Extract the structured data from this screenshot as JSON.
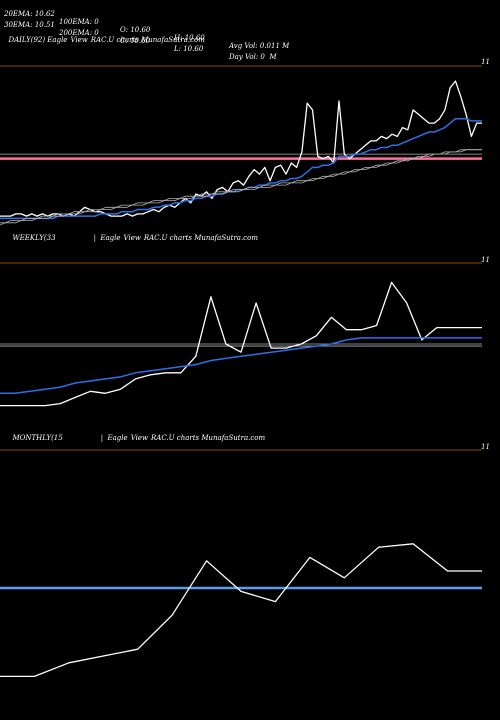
{
  "header": {
    "row1": [
      "20EMA: 10.62",
      "100EMA: 0",
      "O: 10.60",
      "H: 10.60",
      "Avg Vol: 0.011 M"
    ],
    "row2": [
      "30EMA: 10.51",
      "200EMA: 0",
      "C: 10.60",
      "L: 10.60",
      "Day Vol: 0  M"
    ]
  },
  "panels": [
    {
      "label_parts": [
        "DAILY(92) Eagle",
        "View",
        "RAC.U charts MunafaSutra.com"
      ],
      "tick_label": "11"
    },
    {
      "label_parts": [
        "WEEKLY(33",
        "|  Eagle",
        "View",
        "RAC.U charts MunafaSutra.com"
      ],
      "tick_label": "11"
    },
    {
      "label_parts": [
        "MONTHLY(15",
        "|  Eagle",
        "View",
        "RAC.U charts MunafaSutra.com"
      ],
      "tick_label": "11"
    }
  ],
  "colors": {
    "price": "#ffffff",
    "ema": "#2f6fe6",
    "slow": "#b0b0b0",
    "resistance": "#ff6fa0",
    "support": "#5b9bf0",
    "divider": "#8a4a00"
  },
  "chart_data": [
    {
      "type": "line",
      "name": "daily",
      "ylim": [
        10.3,
        11.0
      ],
      "x": [
        0,
        1,
        2,
        3,
        4,
        5,
        6,
        7,
        8,
        9,
        10,
        11,
        12,
        13,
        14,
        15,
        16,
        17,
        18,
        19,
        20,
        21,
        22,
        23,
        24,
        25,
        26,
        27,
        28,
        29,
        30,
        31,
        32,
        33,
        34,
        35,
        36,
        37,
        38,
        39,
        40,
        41,
        42,
        43,
        44,
        45,
        46,
        47,
        48,
        49,
        50,
        51,
        52,
        53,
        54,
        55,
        56,
        57,
        58,
        59,
        60,
        61,
        62,
        63,
        64,
        65,
        66,
        67,
        68,
        69,
        70,
        71,
        72,
        73,
        74,
        75,
        76,
        77,
        78,
        79,
        80,
        81,
        82,
        83,
        84,
        85,
        86,
        87,
        88,
        89,
        90,
        91
      ],
      "series": [
        {
          "role": "price",
          "values": [
            10.34,
            10.34,
            10.34,
            10.35,
            10.35,
            10.34,
            10.35,
            10.34,
            10.35,
            10.34,
            10.35,
            10.35,
            10.34,
            10.35,
            10.34,
            10.36,
            10.38,
            10.37,
            10.36,
            10.36,
            10.35,
            10.34,
            10.34,
            10.34,
            10.35,
            10.34,
            10.35,
            10.35,
            10.36,
            10.37,
            10.36,
            10.38,
            10.39,
            10.38,
            10.4,
            10.42,
            10.4,
            10.44,
            10.43,
            10.45,
            10.42,
            10.46,
            10.47,
            10.45,
            10.49,
            10.5,
            10.48,
            10.52,
            10.55,
            10.53,
            10.56,
            10.5,
            10.56,
            10.57,
            10.53,
            10.58,
            10.56,
            10.63,
            10.85,
            10.82,
            10.61,
            10.6,
            10.61,
            10.58,
            10.86,
            10.62,
            10.6,
            10.62,
            10.64,
            10.66,
            10.68,
            10.68,
            10.7,
            10.69,
            10.71,
            10.7,
            10.74,
            10.73,
            10.82,
            10.8,
            10.78,
            10.76,
            10.76,
            10.78,
            10.82,
            10.92,
            10.95,
            10.88,
            10.8,
            10.7,
            10.76,
            10.76
          ]
        },
        {
          "role": "ema",
          "values": [
            10.33,
            10.33,
            10.33,
            10.33,
            10.33,
            10.33,
            10.33,
            10.33,
            10.33,
            10.33,
            10.33,
            10.34,
            10.34,
            10.34,
            10.34,
            10.34,
            10.34,
            10.34,
            10.34,
            10.35,
            10.35,
            10.35,
            10.35,
            10.36,
            10.36,
            10.36,
            10.37,
            10.37,
            10.37,
            10.38,
            10.38,
            10.39,
            10.39,
            10.4,
            10.4,
            10.41,
            10.41,
            10.42,
            10.42,
            10.43,
            10.43,
            10.44,
            10.44,
            10.45,
            10.45,
            10.46,
            10.46,
            10.47,
            10.47,
            10.48,
            10.48,
            10.49,
            10.49,
            10.5,
            10.5,
            10.51,
            10.51,
            10.52,
            10.54,
            10.56,
            10.56,
            10.57,
            10.57,
            10.58,
            10.61,
            10.61,
            10.61,
            10.62,
            10.62,
            10.63,
            10.64,
            10.64,
            10.65,
            10.65,
            10.66,
            10.66,
            10.67,
            10.68,
            10.69,
            10.7,
            10.71,
            10.72,
            10.72,
            10.73,
            10.74,
            10.76,
            10.78,
            10.78,
            10.78,
            10.77,
            10.77,
            10.77
          ]
        },
        {
          "role": "slow",
          "values": [
            10.3,
            10.31,
            10.31,
            10.31,
            10.32,
            10.32,
            10.32,
            10.33,
            10.33,
            10.33,
            10.34,
            10.34,
            10.34,
            10.35,
            10.35,
            10.35,
            10.36,
            10.36,
            10.36,
            10.37,
            10.37,
            10.37,
            10.38,
            10.38,
            10.38,
            10.39,
            10.39,
            10.39,
            10.4,
            10.4,
            10.4,
            10.41,
            10.41,
            10.41,
            10.42,
            10.42,
            10.42,
            10.43,
            10.43,
            10.43,
            10.44,
            10.44,
            10.44,
            10.45,
            10.45,
            10.45,
            10.46,
            10.46,
            10.46,
            10.47,
            10.47,
            10.47,
            10.48,
            10.48,
            10.48,
            10.49,
            10.49,
            10.49,
            10.5,
            10.5,
            10.51,
            10.51,
            10.52,
            10.52,
            10.53,
            10.53,
            10.54,
            10.54,
            10.55,
            10.55,
            10.56,
            10.56,
            10.57,
            10.57,
            10.58,
            10.58,
            10.59,
            10.59,
            10.6,
            10.6,
            10.61,
            10.61,
            10.62,
            10.62,
            10.62,
            10.63,
            10.63,
            10.63,
            10.64,
            10.64,
            10.64,
            10.64
          ]
        },
        {
          "role": "slow2",
          "values": [
            10.31,
            10.31,
            10.32,
            10.32,
            10.32,
            10.33,
            10.33,
            10.33,
            10.34,
            10.34,
            10.34,
            10.35,
            10.35,
            10.35,
            10.36,
            10.36,
            10.36,
            10.37,
            10.37,
            10.37,
            10.38,
            10.38,
            10.38,
            10.39,
            10.39,
            10.39,
            10.4,
            10.4,
            10.4,
            10.41,
            10.41,
            10.41,
            10.42,
            10.42,
            10.42,
            10.43,
            10.43,
            10.43,
            10.44,
            10.44,
            10.44,
            10.45,
            10.45,
            10.45,
            10.46,
            10.46,
            10.46,
            10.47,
            10.47,
            10.47,
            10.48,
            10.48,
            10.48,
            10.49,
            10.49,
            10.49,
            10.5,
            10.5,
            10.5,
            10.51,
            10.51,
            10.52,
            10.52,
            10.53,
            10.53,
            10.54,
            10.54,
            10.55,
            10.55,
            10.56,
            10.56,
            10.57,
            10.57,
            10.58,
            10.58,
            10.59,
            10.59,
            10.6,
            10.6,
            10.61,
            10.61,
            10.62,
            10.62,
            10.62,
            10.63,
            10.63,
            10.63,
            10.64,
            10.64,
            10.64,
            10.64,
            10.64
          ]
        }
      ],
      "hlines": [
        {
          "role": "resistance",
          "y": 10.6
        },
        {
          "role": "slow",
          "y": 10.62
        }
      ]
    },
    {
      "type": "line",
      "name": "weekly",
      "ylim": [
        10.25,
        11.0
      ],
      "x": [
        0,
        1,
        2,
        3,
        4,
        5,
        6,
        7,
        8,
        9,
        10,
        11,
        12,
        13,
        14,
        15,
        16,
        17,
        18,
        19,
        20,
        21,
        22,
        23,
        24,
        25,
        26,
        27,
        28,
        29,
        30,
        31,
        32
      ],
      "series": [
        {
          "role": "price",
          "values": [
            10.32,
            10.32,
            10.32,
            10.32,
            10.33,
            10.36,
            10.39,
            10.38,
            10.4,
            10.45,
            10.47,
            10.48,
            10.48,
            10.56,
            10.85,
            10.62,
            10.58,
            10.82,
            10.6,
            10.6,
            10.62,
            10.66,
            10.75,
            10.69,
            10.69,
            10.71,
            10.92,
            10.82,
            10.64,
            10.7,
            10.7,
            10.7,
            10.7
          ]
        },
        {
          "role": "ema",
          "values": [
            10.38,
            10.38,
            10.39,
            10.4,
            10.41,
            10.43,
            10.44,
            10.45,
            10.46,
            10.48,
            10.49,
            10.5,
            10.51,
            10.52,
            10.54,
            10.55,
            10.56,
            10.57,
            10.58,
            10.59,
            10.6,
            10.61,
            10.62,
            10.64,
            10.65,
            10.65,
            10.65,
            10.65,
            10.65,
            10.65,
            10.65,
            10.65,
            10.65
          ]
        }
      ],
      "hlines": [
        {
          "role": "slow",
          "y": 10.61
        },
        {
          "role": "slow",
          "y": 10.62
        }
      ]
    },
    {
      "type": "line",
      "name": "monthly",
      "ylim": [
        10.3,
        11.0
      ],
      "x": [
        0,
        1,
        2,
        3,
        4,
        5,
        6,
        7,
        8,
        9,
        10,
        11,
        12,
        13,
        14
      ],
      "series": [
        {
          "role": "price",
          "values": [
            10.34,
            10.34,
            10.38,
            10.4,
            10.42,
            10.52,
            10.68,
            10.59,
            10.56,
            10.69,
            10.63,
            10.72,
            10.73,
            10.65,
            10.65
          ]
        }
      ],
      "hlines": [
        {
          "role": "support",
          "y": 10.6
        }
      ]
    }
  ]
}
